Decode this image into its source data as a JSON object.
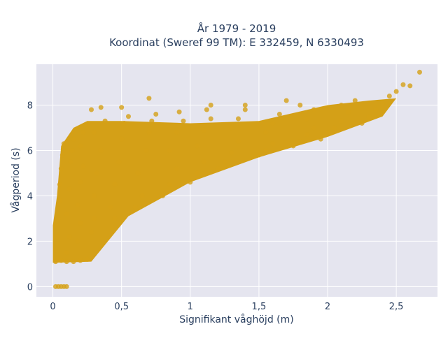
{
  "chart_data": {
    "type": "scatter",
    "title_line1": "År 1979 - 2019",
    "title_line2": "Koordinat (Sweref 99 TM): E 332459, N 6330493",
    "xlabel": "Signifikant våghöjd (m)",
    "ylabel": "Vågperiod (s)",
    "xlim": [
      -0.12,
      2.8
    ],
    "ylim": [
      -0.45,
      9.8
    ],
    "x_ticks": [
      {
        "value": 0,
        "label": "0"
      },
      {
        "value": 0.5,
        "label": "0,5"
      },
      {
        "value": 1,
        "label": "1"
      },
      {
        "value": 1.5,
        "label": "1,5"
      },
      {
        "value": 2,
        "label": "2"
      },
      {
        "value": 2.5,
        "label": "2,5"
      }
    ],
    "y_ticks": [
      {
        "value": 0,
        "label": "0"
      },
      {
        "value": 2,
        "label": "2"
      },
      {
        "value": 4,
        "label": "4"
      },
      {
        "value": 6,
        "label": "6"
      },
      {
        "value": 8,
        "label": "8"
      }
    ],
    "grid": true,
    "marker_color": "#d4a017",
    "plot_bg": "#e5e5ef",
    "grid_color": "#ffffff",
    "series": [
      {
        "points": [
          [
            0.02,
            0.0
          ],
          [
            0.04,
            0.0
          ],
          [
            0.06,
            0.0
          ],
          [
            0.08,
            0.0
          ],
          [
            0.1,
            0.0
          ],
          [
            0.02,
            1.1
          ],
          [
            0.04,
            1.2
          ],
          [
            0.06,
            1.15
          ],
          [
            0.1,
            1.1
          ],
          [
            0.15,
            1.1
          ],
          [
            0.2,
            1.15
          ],
          [
            0.25,
            1.2
          ],
          [
            0.02,
            1.6
          ],
          [
            0.03,
            2.2
          ],
          [
            0.02,
            2.7
          ],
          [
            0.04,
            3.0
          ],
          [
            0.05,
            3.8
          ],
          [
            0.05,
            4.5
          ],
          [
            0.06,
            5.2
          ],
          [
            0.07,
            5.8
          ],
          [
            0.08,
            6.3
          ],
          [
            0.1,
            1.5
          ],
          [
            0.12,
            2.2
          ],
          [
            0.1,
            3.2
          ],
          [
            0.12,
            4.3
          ],
          [
            0.13,
            5.5
          ],
          [
            0.14,
            6.0
          ],
          [
            0.15,
            6.5
          ],
          [
            0.18,
            2.0
          ],
          [
            0.2,
            2.8
          ],
          [
            0.18,
            3.6
          ],
          [
            0.2,
            4.6
          ],
          [
            0.22,
            5.3
          ],
          [
            0.2,
            6.2
          ],
          [
            0.22,
            6.8
          ],
          [
            0.25,
            7.1
          ],
          [
            0.28,
            2.4
          ],
          [
            0.3,
            3.0
          ],
          [
            0.3,
            4.0
          ],
          [
            0.32,
            5.0
          ],
          [
            0.35,
            6.0
          ],
          [
            0.3,
            6.8
          ],
          [
            0.38,
            7.3
          ],
          [
            0.28,
            7.8
          ],
          [
            0.35,
            7.9
          ],
          [
            0.45,
            3.0
          ],
          [
            0.42,
            3.5
          ],
          [
            0.45,
            4.5
          ],
          [
            0.48,
            5.5
          ],
          [
            0.5,
            6.5
          ],
          [
            0.52,
            7.2
          ],
          [
            0.55,
            7.5
          ],
          [
            0.5,
            7.9
          ],
          [
            0.6,
            3.5
          ],
          [
            0.65,
            4.0
          ],
          [
            0.62,
            5.0
          ],
          [
            0.68,
            6.0
          ],
          [
            0.7,
            6.8
          ],
          [
            0.72,
            7.3
          ],
          [
            0.75,
            7.6
          ],
          [
            0.7,
            8.3
          ],
          [
            0.8,
            4.0
          ],
          [
            0.85,
            4.5
          ],
          [
            0.9,
            5.2
          ],
          [
            0.85,
            6.0
          ],
          [
            0.9,
            6.8
          ],
          [
            0.95,
            7.3
          ],
          [
            0.92,
            7.7
          ],
          [
            1.0,
            4.6
          ],
          [
            1.05,
            5.0
          ],
          [
            1.1,
            5.5
          ],
          [
            1.05,
            6.2
          ],
          [
            1.1,
            6.9
          ],
          [
            1.15,
            7.4
          ],
          [
            1.12,
            7.8
          ],
          [
            1.15,
            8.0
          ],
          [
            1.2,
            5.2
          ],
          [
            1.25,
            5.5
          ],
          [
            1.3,
            5.9
          ],
          [
            1.35,
            6.4
          ],
          [
            1.3,
            7.0
          ],
          [
            1.35,
            7.4
          ],
          [
            1.4,
            7.8
          ],
          [
            1.4,
            8.0
          ],
          [
            1.5,
            5.8
          ],
          [
            1.55,
            6.0
          ],
          [
            1.6,
            6.3
          ],
          [
            1.55,
            6.8
          ],
          [
            1.6,
            7.2
          ],
          [
            1.65,
            7.6
          ],
          [
            1.7,
            8.2
          ],
          [
            1.75,
            6.2
          ],
          [
            1.8,
            6.4
          ],
          [
            1.85,
            6.7
          ],
          [
            1.9,
            7.0
          ],
          [
            1.85,
            7.4
          ],
          [
            1.9,
            7.8
          ],
          [
            1.8,
            8.0
          ],
          [
            1.95,
            6.5
          ],
          [
            2.0,
            6.8
          ],
          [
            2.05,
            7.0
          ],
          [
            2.1,
            7.3
          ],
          [
            2.15,
            7.7
          ],
          [
            2.1,
            8.0
          ],
          [
            2.2,
            8.2
          ],
          [
            2.25,
            7.2
          ],
          [
            2.3,
            7.5
          ],
          [
            2.35,
            7.8
          ],
          [
            2.4,
            8.1
          ],
          [
            2.45,
            8.4
          ],
          [
            2.5,
            8.6
          ],
          [
            2.55,
            8.9
          ],
          [
            2.6,
            8.85
          ],
          [
            2.67,
            9.45
          ]
        ]
      }
    ]
  }
}
